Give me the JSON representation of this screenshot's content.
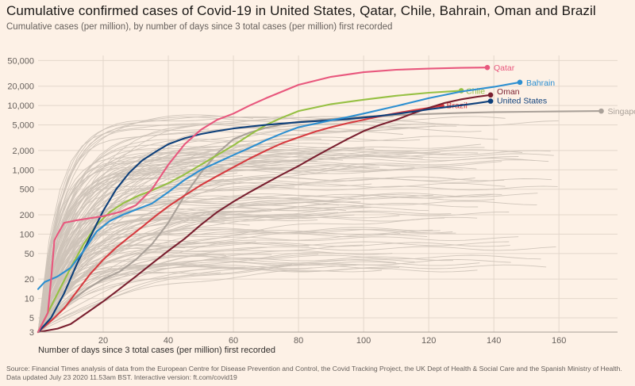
{
  "header": {
    "title": "Cumulative confirmed cases of Covid-19 in United States, Qatar, Chile, Bahrain, Oman and Brazil",
    "subtitle": "Cumulative cases (per million), by number of days since 3 total cases (per million) first recorded"
  },
  "footer": {
    "source": "Source: Financial Times analysis of data from the European Centre for Disease Prevention and Control, the Covid Tracking Project, the UK Dept of Health & Social Care and the Spanish Ministry of Health.",
    "updated": "Data updated July 23 2020 11.53am BST. Interactive version: ft.com/covid19"
  },
  "chart_data": {
    "type": "line",
    "xlabel": "Number of days since 3 total cases (per million) first recorded",
    "ylabel": "",
    "y_scale": "log",
    "xlim": [
      0,
      178
    ],
    "ylim": [
      3,
      60000
    ],
    "x_ticks": [
      20,
      40,
      60,
      80,
      100,
      120,
      140,
      160
    ],
    "x_tick_labels": [
      "20",
      "40",
      "60",
      "80",
      "100",
      "120",
      "140",
      "160"
    ],
    "y_ticks": [
      3,
      5,
      10,
      20,
      50,
      100,
      200,
      500,
      1000,
      2000,
      5000,
      10000,
      20000,
      50000
    ],
    "y_tick_labels": [
      "3",
      "5",
      "10",
      "20",
      "50",
      "100",
      "200",
      "500",
      "1,000",
      "2,000",
      "5,000",
      "10,000",
      "20,000",
      "50,000"
    ],
    "grid": true,
    "context_color": "#cdc3b8",
    "series": [
      {
        "name": "Qatar",
        "color": "#e8577d",
        "points": [
          [
            0,
            3
          ],
          [
            3,
            6
          ],
          [
            4,
            20
          ],
          [
            5,
            80
          ],
          [
            6,
            100
          ],
          [
            8,
            150
          ],
          [
            12,
            165
          ],
          [
            20,
            190
          ],
          [
            25,
            220
          ],
          [
            30,
            280
          ],
          [
            35,
            500
          ],
          [
            40,
            1200
          ],
          [
            45,
            2500
          ],
          [
            50,
            4200
          ],
          [
            55,
            6000
          ],
          [
            60,
            7500
          ],
          [
            65,
            10000
          ],
          [
            70,
            13000
          ],
          [
            80,
            21000
          ],
          [
            90,
            28000
          ],
          [
            100,
            33000
          ],
          [
            110,
            36000
          ],
          [
            120,
            37500
          ],
          [
            130,
            38500
          ],
          [
            138,
            39000
          ]
        ]
      },
      {
        "name": "Bahrain",
        "color": "#2c8fd1",
        "points": [
          [
            0,
            14
          ],
          [
            2,
            18
          ],
          [
            6,
            22
          ],
          [
            10,
            30
          ],
          [
            14,
            55
          ],
          [
            18,
            110
          ],
          [
            22,
            160
          ],
          [
            26,
            200
          ],
          [
            30,
            240
          ],
          [
            35,
            300
          ],
          [
            40,
            450
          ],
          [
            45,
            700
          ],
          [
            50,
            1000
          ],
          [
            55,
            1300
          ],
          [
            60,
            1700
          ],
          [
            65,
            2200
          ],
          [
            70,
            2900
          ],
          [
            75,
            3700
          ],
          [
            80,
            4600
          ],
          [
            85,
            5200
          ],
          [
            90,
            5900
          ],
          [
            95,
            6600
          ],
          [
            100,
            7500
          ],
          [
            110,
            9800
          ],
          [
            120,
            13000
          ],
          [
            130,
            16500
          ],
          [
            140,
            19500
          ],
          [
            148,
            23000
          ]
        ]
      },
      {
        "name": "Chile",
        "color": "#96c043",
        "points": [
          [
            0,
            3
          ],
          [
            3,
            6
          ],
          [
            6,
            12
          ],
          [
            10,
            30
          ],
          [
            14,
            70
          ],
          [
            18,
            140
          ],
          [
            22,
            220
          ],
          [
            26,
            300
          ],
          [
            30,
            380
          ],
          [
            35,
            480
          ],
          [
            40,
            620
          ],
          [
            45,
            850
          ],
          [
            50,
            1200
          ],
          [
            55,
            1700
          ],
          [
            60,
            2400
          ],
          [
            65,
            3500
          ],
          [
            70,
            5000
          ],
          [
            75,
            6500
          ],
          [
            80,
            8200
          ],
          [
            90,
            10500
          ],
          [
            100,
            12300
          ],
          [
            110,
            14200
          ],
          [
            120,
            15800
          ],
          [
            130,
            17000
          ]
        ]
      },
      {
        "name": "Oman",
        "color": "#7a1f2f",
        "points": [
          [
            0,
            3
          ],
          [
            6,
            3.4
          ],
          [
            10,
            4
          ],
          [
            15,
            6
          ],
          [
            20,
            9
          ],
          [
            25,
            14
          ],
          [
            30,
            22
          ],
          [
            35,
            35
          ],
          [
            40,
            55
          ],
          [
            45,
            85
          ],
          [
            50,
            140
          ],
          [
            55,
            220
          ],
          [
            60,
            320
          ],
          [
            65,
            450
          ],
          [
            70,
            620
          ],
          [
            75,
            850
          ],
          [
            80,
            1150
          ],
          [
            85,
            1600
          ],
          [
            90,
            2200
          ],
          [
            95,
            3000
          ],
          [
            100,
            4000
          ],
          [
            105,
            5000
          ],
          [
            110,
            6000
          ],
          [
            115,
            7500
          ],
          [
            120,
            9200
          ],
          [
            125,
            11000
          ],
          [
            130,
            12500
          ],
          [
            135,
            13700
          ],
          [
            139,
            14600
          ]
        ]
      },
      {
        "name": "United States",
        "color": "#0d3f7a",
        "points": [
          [
            0,
            3
          ],
          [
            4,
            5
          ],
          [
            8,
            12
          ],
          [
            12,
            35
          ],
          [
            16,
            90
          ],
          [
            20,
            230
          ],
          [
            24,
            500
          ],
          [
            28,
            900
          ],
          [
            32,
            1400
          ],
          [
            36,
            1900
          ],
          [
            40,
            2500
          ],
          [
            45,
            3100
          ],
          [
            50,
            3600
          ],
          [
            55,
            4000
          ],
          [
            60,
            4400
          ],
          [
            65,
            4700
          ],
          [
            70,
            5000
          ],
          [
            75,
            5250
          ],
          [
            80,
            5500
          ],
          [
            85,
            5700
          ],
          [
            90,
            5900
          ],
          [
            95,
            6150
          ],
          [
            100,
            6500
          ],
          [
            105,
            6900
          ],
          [
            110,
            7400
          ],
          [
            115,
            8000
          ],
          [
            120,
            8700
          ],
          [
            125,
            9400
          ],
          [
            130,
            10100
          ],
          [
            135,
            10900
          ],
          [
            139,
            11700
          ]
        ]
      },
      {
        "name": "Brazil",
        "color": "#d63a3f",
        "points": [
          [
            0,
            3
          ],
          [
            4,
            4.5
          ],
          [
            8,
            7
          ],
          [
            12,
            13
          ],
          [
            16,
            24
          ],
          [
            20,
            40
          ],
          [
            24,
            62
          ],
          [
            28,
            90
          ],
          [
            32,
            130
          ],
          [
            36,
            190
          ],
          [
            40,
            270
          ],
          [
            45,
            400
          ],
          [
            50,
            580
          ],
          [
            55,
            800
          ],
          [
            60,
            1100
          ],
          [
            65,
            1500
          ],
          [
            70,
            2000
          ],
          [
            75,
            2600
          ],
          [
            80,
            3200
          ],
          [
            85,
            3900
          ],
          [
            90,
            4600
          ],
          [
            95,
            5300
          ],
          [
            100,
            6000
          ],
          [
            105,
            6800
          ],
          [
            110,
            7600
          ],
          [
            115,
            8400
          ],
          [
            120,
            9200
          ],
          [
            124,
            9900
          ]
        ]
      },
      {
        "name": "Singapore",
        "color": "#aaa199",
        "points": [
          [
            0,
            3
          ],
          [
            5,
            5
          ],
          [
            10,
            9
          ],
          [
            15,
            14
          ],
          [
            20,
            20
          ],
          [
            25,
            26
          ],
          [
            30,
            40
          ],
          [
            35,
            70
          ],
          [
            40,
            150
          ],
          [
            45,
            400
          ],
          [
            50,
            900
          ],
          [
            55,
            1800
          ],
          [
            60,
            3000
          ],
          [
            65,
            3800
          ],
          [
            70,
            4500
          ],
          [
            75,
            5100
          ],
          [
            80,
            5600
          ],
          [
            90,
            6200
          ],
          [
            100,
            6700
          ],
          [
            110,
            7100
          ],
          [
            120,
            7400
          ],
          [
            130,
            7700
          ],
          [
            140,
            7900
          ],
          [
            150,
            8000
          ],
          [
            160,
            8100
          ],
          [
            173,
            8200
          ]
        ]
      }
    ]
  }
}
